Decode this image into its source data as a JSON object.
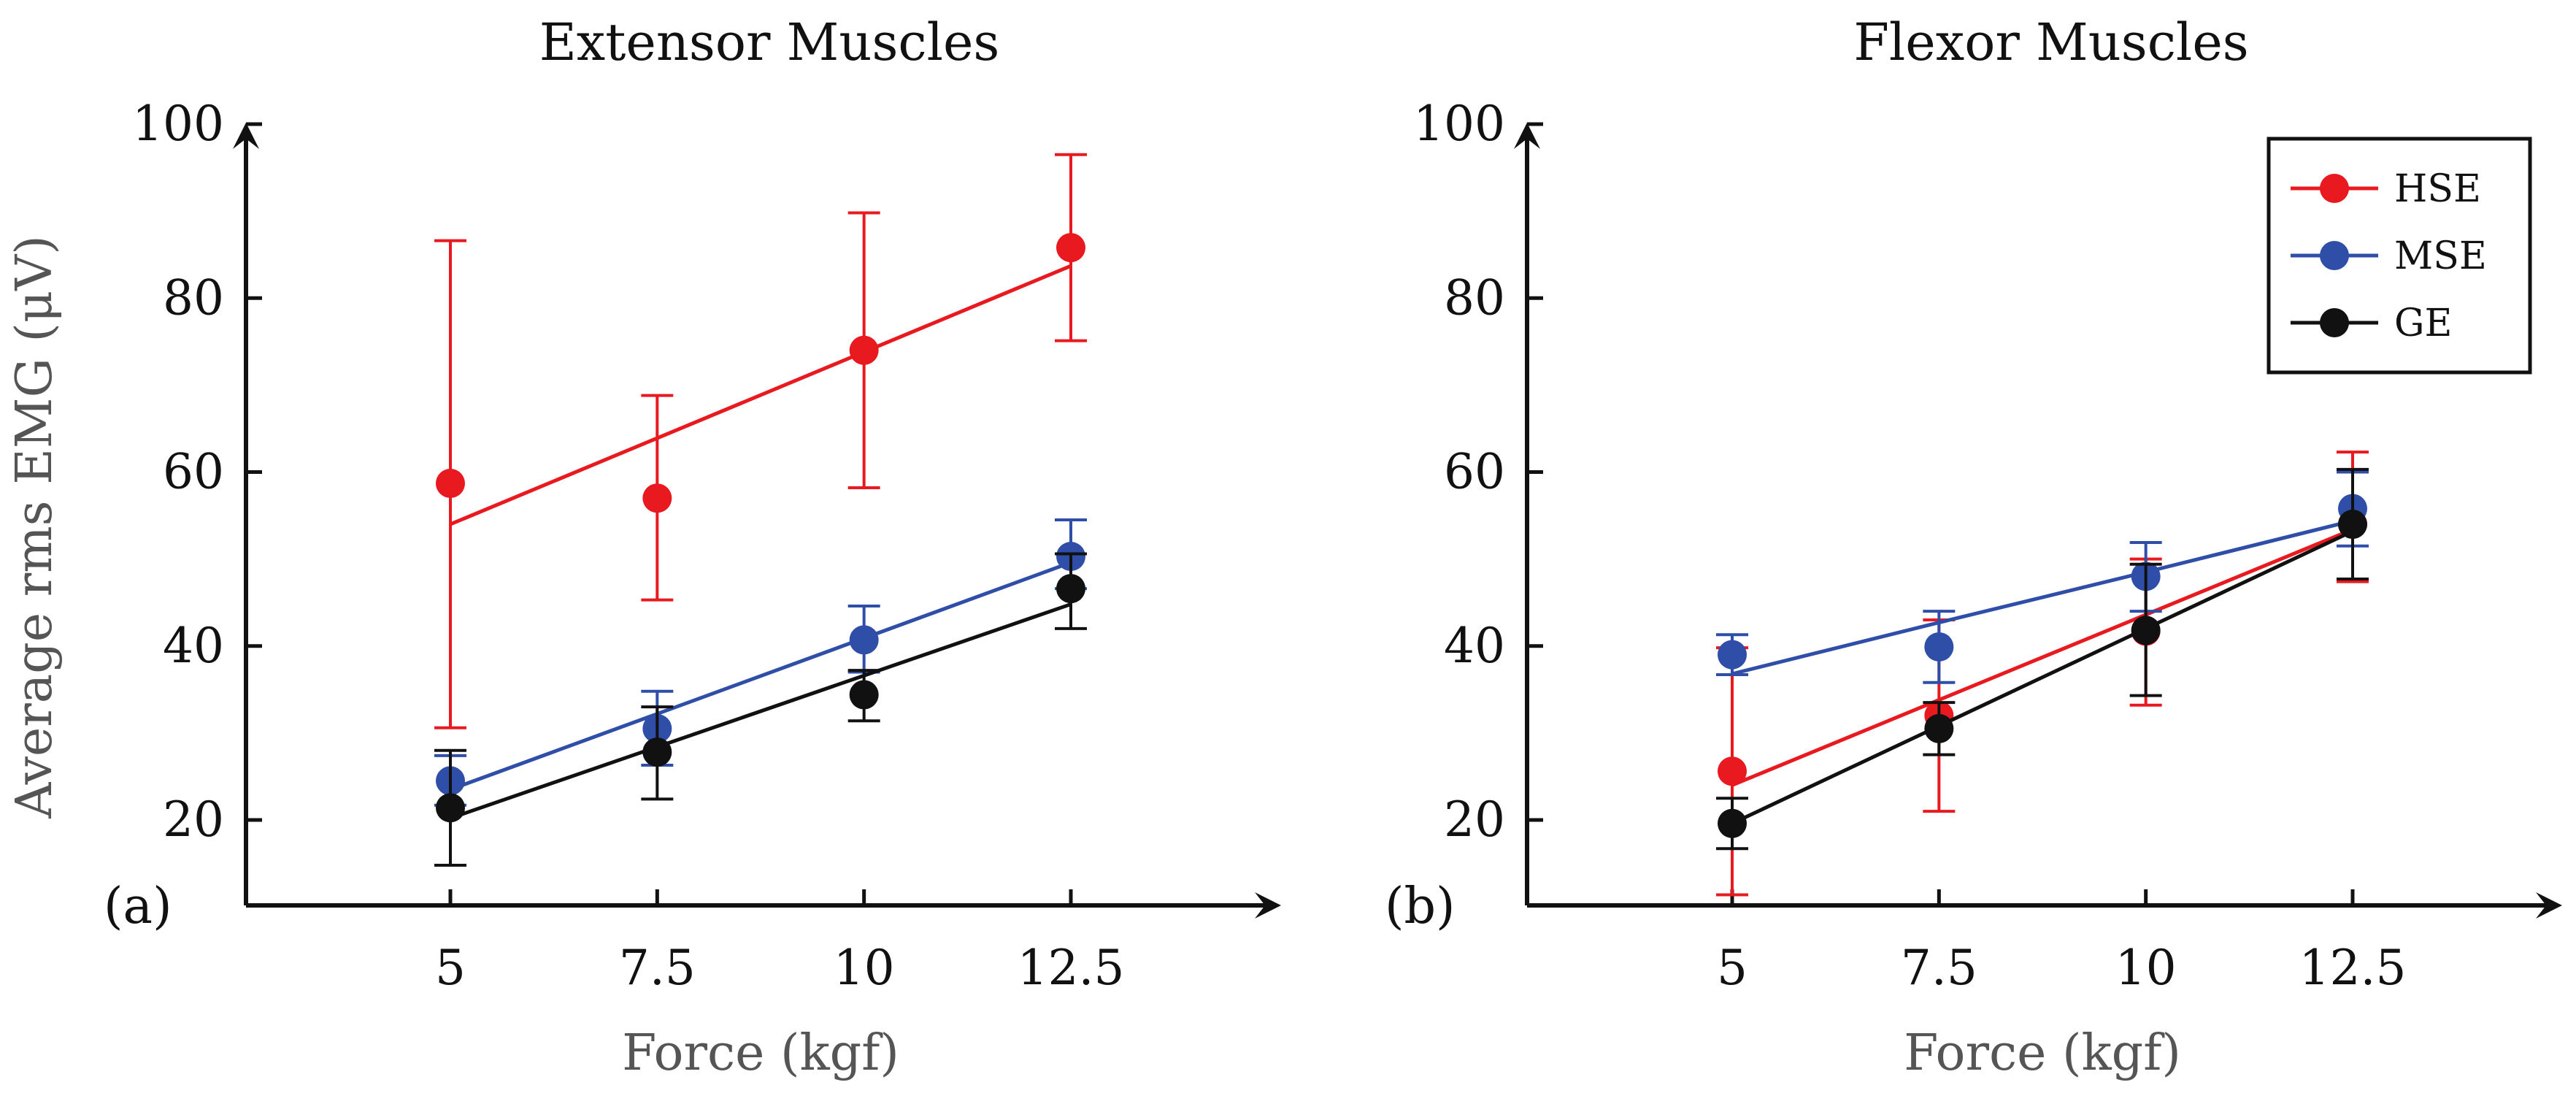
{
  "chart_data": [
    {
      "type": "scatter",
      "title": "Extensor Muscles",
      "panel_label": "(a)",
      "xlabel": "Force (kgf)",
      "ylabel": "Average rms EMG (μV)",
      "x": [
        5,
        7.5,
        10,
        12.5
      ],
      "x_tick_labels": [
        "5",
        "7.5",
        "10",
        "12.5"
      ],
      "y_ticks": [
        20,
        40,
        60,
        80,
        100
      ],
      "y_tick_labels": [
        "20",
        "40",
        "60",
        "80",
        "100"
      ],
      "xlim": [
        2.5,
        14.9
      ],
      "ylim": [
        10,
        100
      ],
      "series": [
        {
          "name": "HSE",
          "color": "#e8191f",
          "values": [
            58.7,
            57.0,
            74.0,
            85.8
          ],
          "err_low": [
            30.6,
            45.3,
            58.2,
            75.1
          ],
          "err_high": [
            86.6,
            68.8,
            89.8,
            96.5
          ],
          "fit": [
            54.0,
            63.9,
            73.8,
            83.7
          ]
        },
        {
          "name": "MSE",
          "color": "#2f4ea8",
          "values": [
            24.5,
            30.5,
            40.7,
            50.3
          ],
          "err_low": [
            21.7,
            26.3,
            37.0,
            46.6
          ],
          "err_high": [
            27.4,
            34.8,
            44.6,
            54.5
          ],
          "fit": [
            23.5,
            32.2,
            40.9,
            49.6
          ]
        },
        {
          "name": "GE",
          "color": "#111111",
          "values": [
            21.4,
            27.8,
            34.4,
            46.6
          ],
          "err_low": [
            14.8,
            22.4,
            31.4,
            42.0
          ],
          "err_high": [
            28.0,
            33.0,
            37.2,
            50.6
          ],
          "fit": [
            20.2,
            28.4,
            36.6,
            44.8
          ]
        }
      ]
    },
    {
      "type": "scatter",
      "title": "Flexor Muscles",
      "panel_label": "(b)",
      "xlabel": "Force (kgf)",
      "x": [
        5,
        7.5,
        10,
        12.5
      ],
      "x_tick_labels": [
        "5",
        "7.5",
        "10",
        "12.5"
      ],
      "y_ticks": [
        20,
        40,
        60,
        80,
        100
      ],
      "y_tick_labels": [
        "20",
        "40",
        "60",
        "80",
        "100"
      ],
      "xlim": [
        2.5,
        14.9
      ],
      "ylim": [
        10,
        100
      ],
      "legend": {
        "position": "top-right",
        "entries": [
          "HSE",
          "MSE",
          "GE"
        ]
      },
      "series": [
        {
          "name": "HSE",
          "color": "#e8191f",
          "values": [
            25.6,
            32.0,
            41.7,
            54.0
          ],
          "err_low": [
            11.4,
            21.0,
            33.2,
            47.4
          ],
          "err_high": [
            39.8,
            43.0,
            50.0,
            62.3
          ],
          "fit": [
            24.0,
            33.8,
            43.6,
            53.4
          ]
        },
        {
          "name": "MSE",
          "color": "#2f4ea8",
          "values": [
            39.0,
            39.9,
            48.0,
            55.8
          ],
          "err_low": [
            36.7,
            35.8,
            44.0,
            51.5
          ],
          "err_high": [
            41.3,
            44.0,
            51.9,
            60.0
          ],
          "fit": [
            36.8,
            42.7,
            48.5,
            54.4
          ]
        },
        {
          "name": "GE",
          "color": "#111111",
          "values": [
            19.6,
            30.5,
            41.8,
            54.0
          ],
          "err_low": [
            16.7,
            27.5,
            34.3,
            47.7
          ],
          "err_high": [
            22.5,
            33.5,
            49.4,
            60.3
          ],
          "fit": [
            19.6,
            30.8,
            42.0,
            53.2
          ]
        }
      ]
    }
  ]
}
